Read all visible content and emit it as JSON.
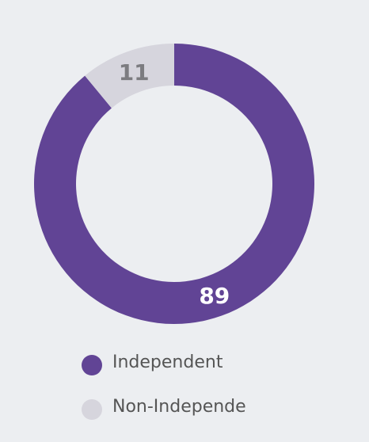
{
  "chart_data": {
    "type": "donut",
    "categories": [
      "Independent",
      "Non-Independe"
    ],
    "values": [
      89,
      11
    ],
    "colors": [
      "#614495",
      "#d6d5dd"
    ],
    "label_colors": [
      "#ffffff",
      "#7c7c80"
    ]
  }
}
